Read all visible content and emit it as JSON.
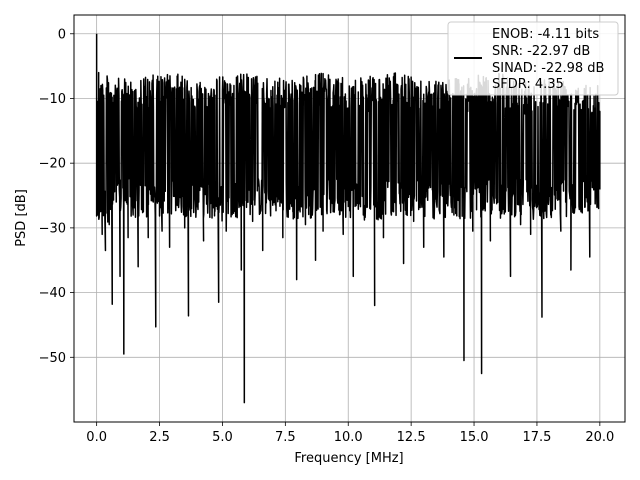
{
  "chart_data": {
    "type": "line",
    "title": "",
    "xlabel": "Frequency [MHz]",
    "ylabel": "PSD [dB]",
    "xlim": [
      -0.9,
      21.0
    ],
    "ylim": [
      -60.0,
      2.9
    ],
    "xticks": [
      0.0,
      2.5,
      5.0,
      7.5,
      10.0,
      12.5,
      15.0,
      17.5,
      20.0
    ],
    "xtick_labels": [
      "0.0",
      "2.5",
      "5.0",
      "7.5",
      "10.0",
      "12.5",
      "15.0",
      "17.5",
      "20.0"
    ],
    "yticks": [
      0,
      -10,
      -20,
      -30,
      -40,
      -50
    ],
    "ytick_labels": [
      "0",
      "−10",
      "−20",
      "−30",
      "−40",
      "−50"
    ],
    "grid": true,
    "legend_position": "top-right",
    "series_color": "#000000",
    "legend": {
      "lines": [
        "ENOB: -4.11 bits",
        "SNR: -22.97 dB",
        "SINAD: -22.98 dB",
        "SFDR: 4.35"
      ]
    },
    "series": [
      {
        "x_start": 0.0,
        "x_end": 20.0,
        "points": [
          [
            0.0,
            0.0
          ],
          [
            0.02,
            -13.5
          ],
          [
            0.05,
            -28.0
          ],
          [
            0.08,
            -6.0
          ],
          [
            0.12,
            -24.0
          ],
          [
            0.17,
            -11.5
          ],
          [
            0.22,
            -31.0
          ],
          [
            0.28,
            -9.5
          ],
          [
            0.35,
            -33.5
          ],
          [
            0.42,
            -12.0
          ],
          [
            0.5,
            -29.5
          ],
          [
            0.55,
            -10.5
          ],
          [
            0.62,
            -41.8
          ],
          [
            0.7,
            -12.5
          ],
          [
            0.78,
            -26.0
          ],
          [
            0.85,
            -9.0
          ],
          [
            0.93,
            -37.5
          ],
          [
            1.0,
            -11.0
          ],
          [
            1.08,
            -49.5
          ],
          [
            1.15,
            -13.0
          ],
          [
            1.25,
            -31.5
          ],
          [
            1.35,
            -10.0
          ],
          [
            1.45,
            -28.0
          ],
          [
            1.55,
            -9.5
          ],
          [
            1.65,
            -36.0
          ],
          [
            1.75,
            -12.5
          ],
          [
            1.85,
            -27.0
          ],
          [
            1.95,
            -8.5
          ],
          [
            2.05,
            -31.5
          ],
          [
            2.15,
            -11.0
          ],
          [
            2.25,
            -26.0
          ],
          [
            2.35,
            -45.3
          ],
          [
            2.45,
            -12.0
          ],
          [
            2.6,
            -30.5
          ],
          [
            2.75,
            -9.5
          ],
          [
            2.9,
            -33.0
          ],
          [
            3.05,
            -11.5
          ],
          [
            3.2,
            -26.5
          ],
          [
            3.35,
            -7.5
          ],
          [
            3.5,
            -30.0
          ],
          [
            3.65,
            -43.6
          ],
          [
            3.8,
            -12.0
          ],
          [
            3.95,
            -27.5
          ],
          [
            4.1,
            -8.0
          ],
          [
            4.25,
            -32.0
          ],
          [
            4.4,
            -11.5
          ],
          [
            4.55,
            -25.5
          ],
          [
            4.7,
            -9.5
          ],
          [
            4.85,
            -41.5
          ],
          [
            5.0,
            -12.0
          ],
          [
            5.15,
            -30.5
          ],
          [
            5.3,
            -8.5
          ],
          [
            5.45,
            -27.0
          ],
          [
            5.6,
            -10.5
          ],
          [
            5.75,
            -36.5
          ],
          [
            5.87,
            -57.0
          ],
          [
            6.0,
            -11.0
          ],
          [
            6.2,
            -29.0
          ],
          [
            6.4,
            -8.5
          ],
          [
            6.6,
            -33.5
          ],
          [
            6.8,
            -10.0
          ],
          [
            7.0,
            -26.5
          ],
          [
            7.2,
            -7.5
          ],
          [
            7.4,
            -31.5
          ],
          [
            7.6,
            -12.0
          ],
          [
            7.8,
            -27.5
          ],
          [
            7.95,
            -38.0
          ],
          [
            8.1,
            -10.0
          ],
          [
            8.3,
            -29.5
          ],
          [
            8.5,
            -8.5
          ],
          [
            8.7,
            -35.0
          ],
          [
            8.85,
            -11.0
          ],
          [
            9.0,
            -30.5
          ],
          [
            9.2,
            -9.5
          ],
          [
            9.4,
            -27.5
          ],
          [
            9.6,
            -7.0
          ],
          [
            9.8,
            -31.0
          ],
          [
            10.0,
            -11.5
          ],
          [
            10.2,
            -37.5
          ],
          [
            10.4,
            -9.0
          ],
          [
            10.6,
            -28.0
          ],
          [
            10.8,
            -12.0
          ],
          [
            11.05,
            -42.0
          ],
          [
            11.2,
            -10.5
          ],
          [
            11.4,
            -31.5
          ],
          [
            11.6,
            -8.0
          ],
          [
            11.8,
            -27.5
          ],
          [
            12.0,
            -11.5
          ],
          [
            12.2,
            -35.5
          ],
          [
            12.4,
            -8.5
          ],
          [
            12.6,
            -29.0
          ],
          [
            12.8,
            -10.5
          ],
          [
            13.0,
            -33.0
          ],
          [
            13.2,
            -9.0
          ],
          [
            13.4,
            -27.0
          ],
          [
            13.6,
            -7.5
          ],
          [
            13.8,
            -34.5
          ],
          [
            14.0,
            -11.5
          ],
          [
            14.2,
            -28.0
          ],
          [
            14.4,
            -9.5
          ],
          [
            14.6,
            -50.5
          ],
          [
            14.75,
            -12.0
          ],
          [
            14.95,
            -30.5
          ],
          [
            15.1,
            -8.5
          ],
          [
            15.3,
            -52.5
          ],
          [
            15.45,
            -10.5
          ],
          [
            15.65,
            -32.0
          ],
          [
            15.85,
            -8.0
          ],
          [
            16.05,
            -28.5
          ],
          [
            16.25,
            -11.5
          ],
          [
            16.45,
            -37.5
          ],
          [
            16.65,
            -9.0
          ],
          [
            16.85,
            -29.5
          ],
          [
            17.05,
            -7.5
          ],
          [
            17.25,
            -31.0
          ],
          [
            17.45,
            -10.5
          ],
          [
            17.7,
            -43.8
          ],
          [
            17.85,
            -11.0
          ],
          [
            18.05,
            -28.0
          ],
          [
            18.25,
            -8.5
          ],
          [
            18.45,
            -30.5
          ],
          [
            18.65,
            -10.0
          ],
          [
            18.85,
            -36.5
          ],
          [
            19.05,
            -11.0
          ],
          [
            19.25,
            -27.5
          ],
          [
            19.45,
            -8.0
          ],
          [
            19.6,
            -34.5
          ],
          [
            19.8,
            -11.5
          ],
          [
            19.95,
            -27.0
          ],
          [
            20.0,
            -12.0
          ]
        ],
        "upper_envelope": [
          [
            0.0,
            -6.0
          ],
          [
            1.0,
            -7.0
          ],
          [
            2.0,
            -6.5
          ],
          [
            3.0,
            -6.0
          ],
          [
            4.0,
            -7.0
          ],
          [
            5.0,
            -6.5
          ],
          [
            6.0,
            -6.0
          ],
          [
            7.0,
            -7.0
          ],
          [
            8.0,
            -6.5
          ],
          [
            9.0,
            -6.0
          ],
          [
            10.0,
            -7.0
          ],
          [
            11.0,
            -6.5
          ],
          [
            12.0,
            -6.0
          ],
          [
            13.0,
            -7.0
          ],
          [
            14.0,
            -6.5
          ],
          [
            15.0,
            -6.5
          ],
          [
            16.0,
            -6.0
          ],
          [
            17.0,
            -7.5
          ],
          [
            18.0,
            -6.5
          ],
          [
            19.0,
            -7.0
          ],
          [
            20.0,
            -7.5
          ]
        ],
        "lower_envelope": [
          [
            0.0,
            -30.0
          ],
          [
            1.0,
            -28.0
          ],
          [
            2.0,
            -29.0
          ],
          [
            3.0,
            -28.0
          ],
          [
            4.0,
            -28.5
          ],
          [
            5.0,
            -29.0
          ],
          [
            6.0,
            -28.0
          ],
          [
            7.0,
            -28.5
          ],
          [
            8.0,
            -29.0
          ],
          [
            9.0,
            -28.0
          ],
          [
            10.0,
            -28.5
          ],
          [
            11.0,
            -29.0
          ],
          [
            12.0,
            -28.0
          ],
          [
            13.0,
            -28.5
          ],
          [
            14.0,
            -29.0
          ],
          [
            15.0,
            -28.5
          ],
          [
            16.0,
            -28.0
          ],
          [
            17.0,
            -28.5
          ],
          [
            18.0,
            -29.0
          ],
          [
            19.0,
            -28.0
          ],
          [
            20.0,
            -27.0
          ]
        ]
      }
    ]
  }
}
